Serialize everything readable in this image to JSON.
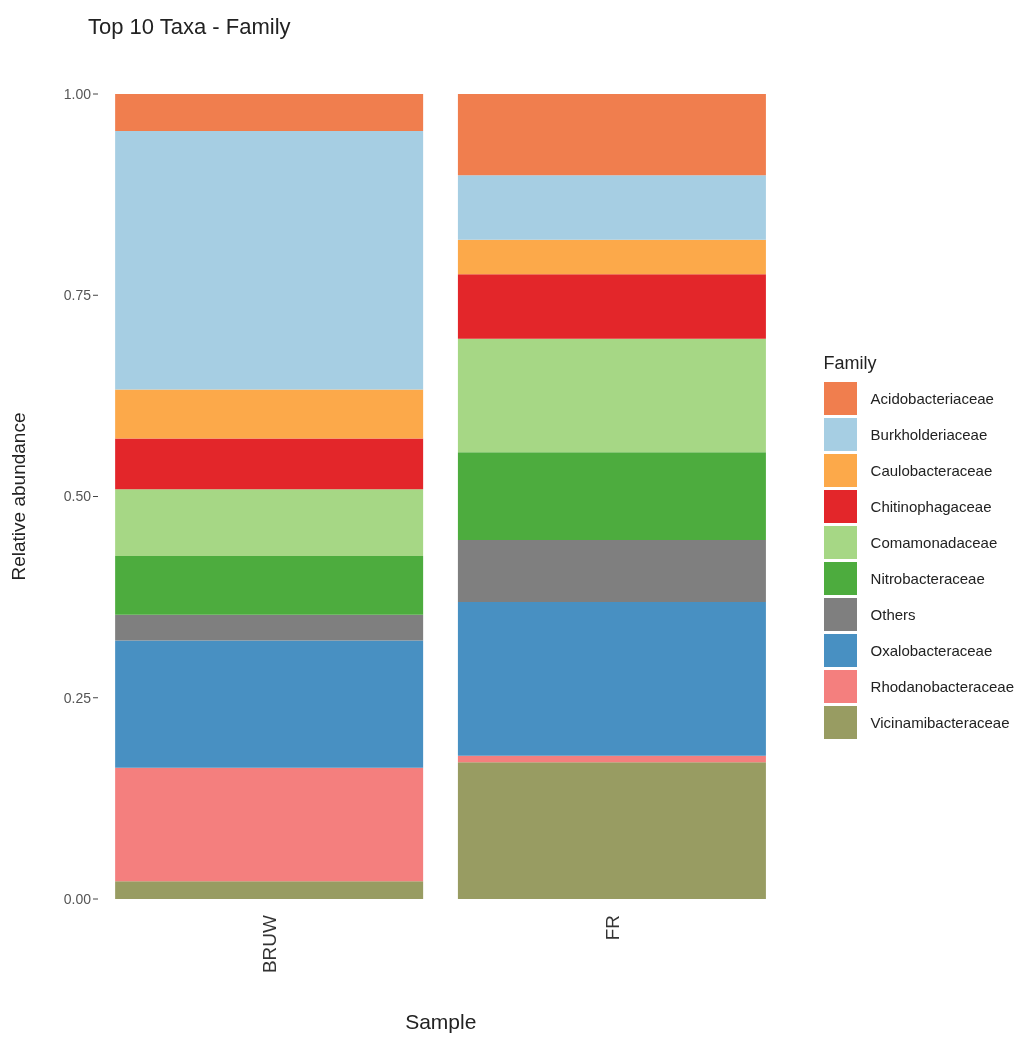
{
  "chart_data": {
    "type": "bar",
    "title": "Top 10 Taxa - Family",
    "xlabel": "Sample",
    "ylabel": "Relative abundance",
    "legend_title": "Family",
    "categories": [
      "BRUW",
      "FR"
    ],
    "stacked": true,
    "ylim": [
      0,
      1
    ],
    "yticks": [
      {
        "value": 0,
        "label": "0.00"
      },
      {
        "value": 0.25,
        "label": "0.25"
      },
      {
        "value": 0.5,
        "label": "0.50"
      },
      {
        "value": 0.75,
        "label": "0.75"
      },
      {
        "value": 1,
        "label": "1.00"
      }
    ],
    "legend": "right",
    "series": [
      {
        "name": "Vicinamibacteraceae",
        "color": "#989c62",
        "values": [
          0.022,
          0.17
        ]
      },
      {
        "name": "Rhodanobacteraceae",
        "color": "#f47f7e",
        "values": [
          0.141,
          0.008
        ]
      },
      {
        "name": "Oxalobacteraceae",
        "color": "#4890c2",
        "values": [
          0.158,
          0.191
        ]
      },
      {
        "name": "Others",
        "color": "#7f7f7f",
        "values": [
          0.032,
          0.077
        ]
      },
      {
        "name": "Nitrobacteraceae",
        "color": "#4dac3e",
        "values": [
          0.073,
          0.109
        ]
      },
      {
        "name": "Comamonadaceae",
        "color": "#a6d785",
        "values": [
          0.083,
          0.141
        ]
      },
      {
        "name": "Chitinophagaceae",
        "color": "#e3262a",
        "values": [
          0.063,
          0.08
        ]
      },
      {
        "name": "Caulobacteraceae",
        "color": "#fca94a",
        "values": [
          0.061,
          0.043
        ]
      },
      {
        "name": "Burkholderiaceae",
        "color": "#a6cee3",
        "values": [
          0.321,
          0.08
        ]
      },
      {
        "name": "Acidobacteriaceae",
        "color": "#f07e4e",
        "values": [
          0.046,
          0.101
        ]
      }
    ]
  }
}
